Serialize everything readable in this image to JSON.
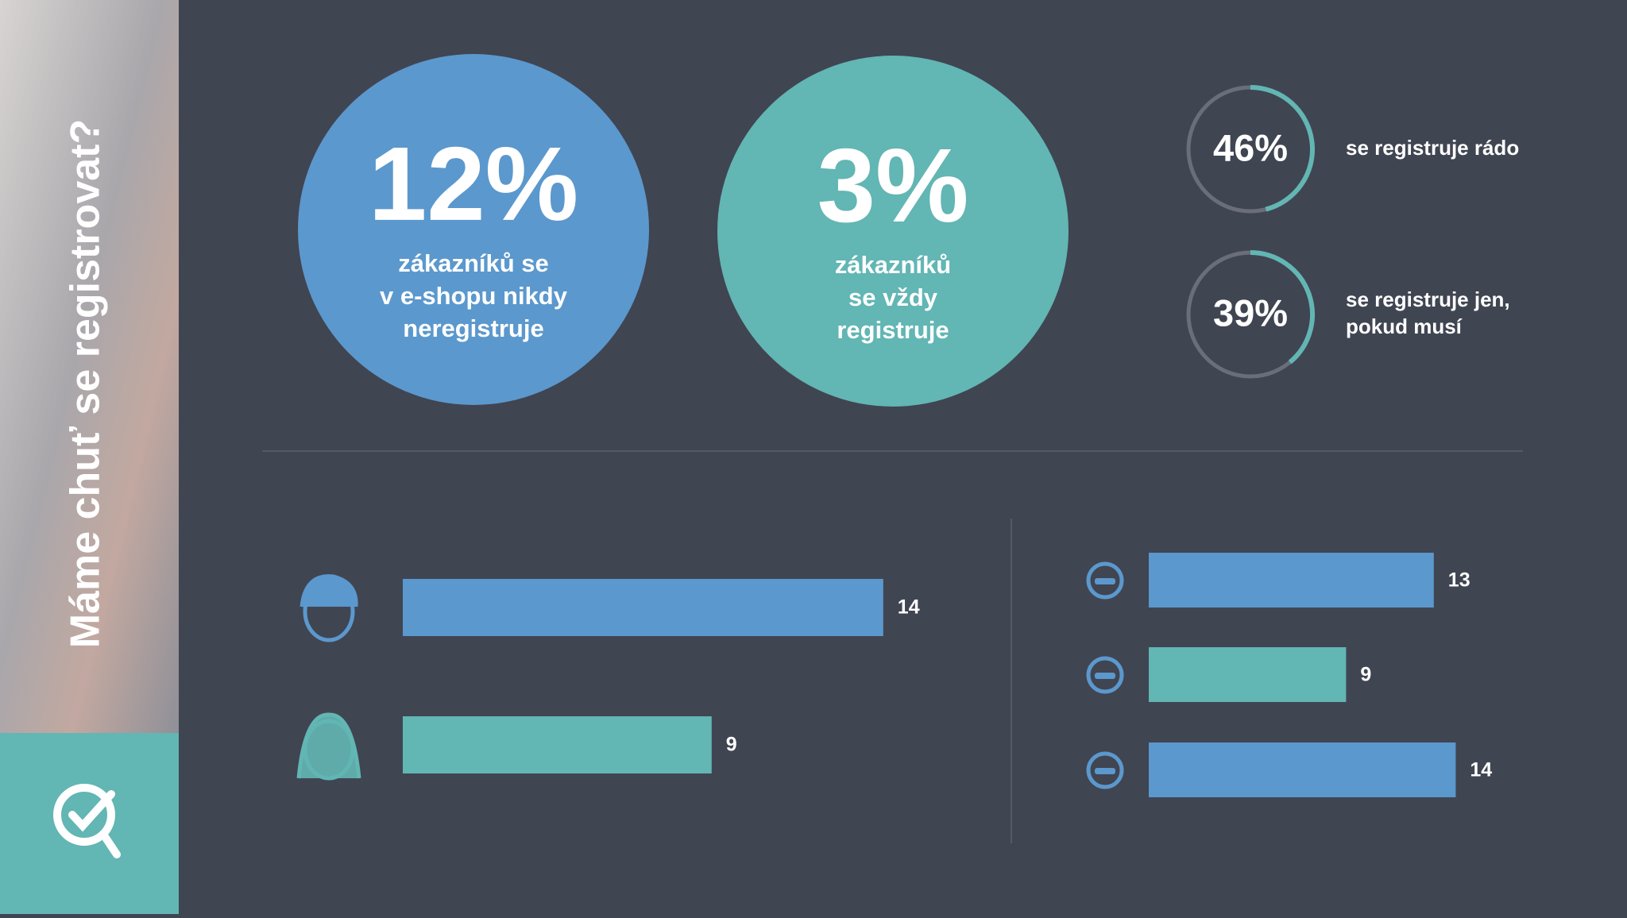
{
  "sidebar": {
    "title": "Máme chuť se registrovat?"
  },
  "big_stats": [
    {
      "figure": "12%",
      "lines": [
        "zákazníků se",
        "v e-shopu nikdy",
        "neregistruje"
      ],
      "color": "#5b98cd"
    },
    {
      "figure": "3%",
      "lines": [
        "zákazníků",
        "se vždy",
        "registruje"
      ],
      "color": "#62b6b4"
    }
  ],
  "rings": [
    {
      "value": 46,
      "label": "46%",
      "lines": [
        "se registruje rádo"
      ]
    },
    {
      "value": 39,
      "label": "39%",
      "lines": [
        "se registruje jen,",
        "pokud musí"
      ]
    }
  ],
  "gender_bars": {
    "values": [
      14,
      9
    ],
    "colors": [
      "#5b98cd",
      "#62b6b4"
    ]
  },
  "age_bars": {
    "values": [
      13,
      9,
      14
    ],
    "colors": [
      "#5b98cd",
      "#62b6b4",
      "#5b98cd"
    ]
  }
}
